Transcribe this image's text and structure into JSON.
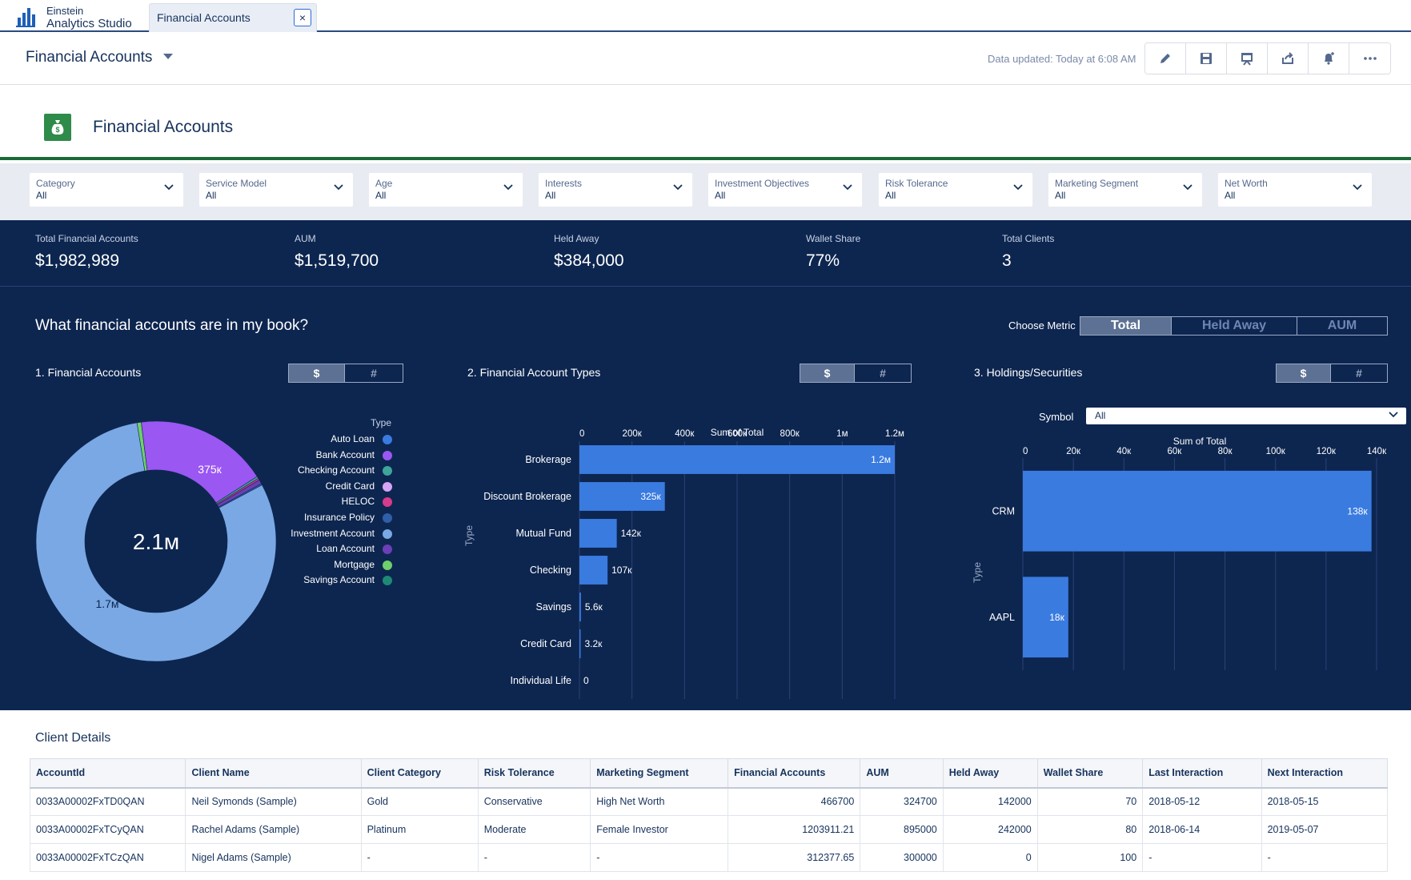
{
  "app": {
    "logo_line1": "Einstein",
    "logo_line2": "Analytics Studio"
  },
  "tab": {
    "label": "Financial Accounts"
  },
  "header": {
    "title": "Financial Accounts",
    "updated": "Data updated: Today at 6:08 AM",
    "toolbar": [
      "edit-icon",
      "save-icon",
      "present-icon",
      "share-icon",
      "notify-icon",
      "more-icon"
    ]
  },
  "page": {
    "heading": "Financial Accounts"
  },
  "filters": [
    {
      "label": "Category",
      "value": "All"
    },
    {
      "label": "Service Model",
      "value": "All"
    },
    {
      "label": "Age",
      "value": "All"
    },
    {
      "label": "Interests",
      "value": "All"
    },
    {
      "label": "Investment Objectives",
      "value": "All"
    },
    {
      "label": "Risk Tolerance",
      "value": "All"
    },
    {
      "label": "Marketing Segment",
      "value": "All"
    },
    {
      "label": "Net Worth",
      "value": "All"
    }
  ],
  "kpis": [
    {
      "label": "Total Financial Accounts",
      "value": "$1,982,989"
    },
    {
      "label": "AUM",
      "value": "$1,519,700"
    },
    {
      "label": "Held Away",
      "value": "$384,000"
    },
    {
      "label": "Wallet Share",
      "value": "77%"
    },
    {
      "label": "Total Clients",
      "value": "3"
    }
  ],
  "section": {
    "question": "What financial accounts are in my book?",
    "choose_metric": "Choose Metric",
    "metric_options": [
      "Total",
      "Held Away",
      "AUM"
    ],
    "metric_selected": "Total"
  },
  "panels": {
    "p1": {
      "title": "1. Financial Accounts",
      "toggle": [
        "$",
        "#"
      ]
    },
    "p2": {
      "title": "2. Financial Account Types",
      "toggle": [
        "$",
        "#"
      ]
    },
    "p3": {
      "title": "3. Holdings/Securities",
      "toggle": [
        "$",
        "#"
      ],
      "symbol_label": "Symbol",
      "symbol_value": "All"
    }
  },
  "legend": {
    "title": "Type",
    "items": [
      {
        "label": "Auto Loan",
        "color": "#3a7be0"
      },
      {
        "label": "Bank Account",
        "color": "#9a57f2"
      },
      {
        "label": "Checking Account",
        "color": "#3fa49a"
      },
      {
        "label": "Credit Card",
        "color": "#d6a4f5"
      },
      {
        "label": "HELOC",
        "color": "#d63b8c"
      },
      {
        "label": "Insurance Policy",
        "color": "#2f5fa8"
      },
      {
        "label": "Investment Account",
        "color": "#7aa8e4"
      },
      {
        "label": "Loan Account",
        "color": "#6b3fb8"
      },
      {
        "label": "Mortgage",
        "color": "#6fd06a"
      },
      {
        "label": "Savings Account",
        "color": "#1e8a76"
      }
    ]
  },
  "chart_data": [
    {
      "type": "pie",
      "title": "1. Financial Accounts",
      "center_label": "2.1м",
      "legend_title": "Type",
      "categories": [
        "Investment Account",
        "Bank Account",
        "Checking Account",
        "HELOC",
        "Loan Account",
        "Mortgage",
        "Insurance Policy"
      ],
      "values": [
        1680000,
        375000,
        6000,
        5000,
        12000,
        12000,
        4000
      ],
      "colors": [
        "#7aa8e4",
        "#9a57f2",
        "#3fa49a",
        "#d63b8c",
        "#6b3fb8",
        "#6fd06a",
        "#2f5fa8"
      ],
      "data_labels": [
        {
          "text": "375к",
          "category": "Bank Account"
        },
        {
          "text": "1.7м",
          "category": "Investment Account"
        }
      ]
    },
    {
      "type": "bar",
      "orientation": "horizontal",
      "title": "2. Financial Account Types",
      "xlabel": "Sum of Total",
      "ylabel": "Type",
      "xlim": [
        0,
        1200000
      ],
      "xticks": [
        0,
        200000,
        400000,
        600000,
        800000,
        1000000,
        1200000
      ],
      "xtick_labels": [
        "0",
        "200к",
        "400к",
        "600к",
        "800к",
        "1м",
        "1.2м"
      ],
      "categories": [
        "Brokerage",
        "Discount Brokerage",
        "Mutual Fund",
        "Checking",
        "Savings",
        "Credit Card",
        "Individual Life"
      ],
      "values": [
        1200000,
        325000,
        142000,
        107000,
        5600,
        3200,
        0
      ],
      "value_labels": [
        "1.2м",
        "325к",
        "142к",
        "107к",
        "5.6к",
        "3.2к",
        "0"
      ],
      "color": "#3a7be0"
    },
    {
      "type": "bar",
      "orientation": "horizontal",
      "title": "3. Holdings/Securities",
      "xlabel": "Sum of Total",
      "ylabel": "Type",
      "xlim": [
        0,
        140000
      ],
      "xticks": [
        0,
        20000,
        40000,
        60000,
        80000,
        100000,
        120000,
        140000
      ],
      "xtick_labels": [
        "0",
        "20к",
        "40к",
        "60к",
        "80к",
        "100к",
        "120к",
        "140к"
      ],
      "categories": [
        "CRM",
        "AAPL"
      ],
      "values": [
        138000,
        18000
      ],
      "value_labels": [
        "138к",
        "18к"
      ],
      "color": "#3a7be0"
    }
  ],
  "client_details": {
    "title": "Client Details",
    "columns": [
      "AccountId",
      "Client Name",
      "Client Category",
      "Risk Tolerance",
      "Marketing Segment",
      "Financial Accounts",
      "AUM",
      "Held Away",
      "Wallet Share",
      "Last Interaction",
      "Next Interaction"
    ],
    "rows": [
      [
        "0033A00002FxTD0QAN",
        "Neil Symonds (Sample)",
        "Gold",
        "Conservative",
        "High Net Worth",
        "466700",
        "324700",
        "142000",
        "70",
        "2018-05-12",
        "2018-05-15"
      ],
      [
        "0033A00002FxTCyQAN",
        "Rachel Adams (Sample)",
        "Platinum",
        "Moderate",
        "Female Investor",
        "1203911.21",
        "895000",
        "242000",
        "80",
        "2018-06-14",
        "2019-05-07"
      ],
      [
        "0033A00002FxTCzQAN",
        "Nigel Adams (Sample)",
        "-",
        "-",
        "-",
        "312377.65",
        "300000",
        "0",
        "100",
        "-",
        "-"
      ]
    ]
  }
}
